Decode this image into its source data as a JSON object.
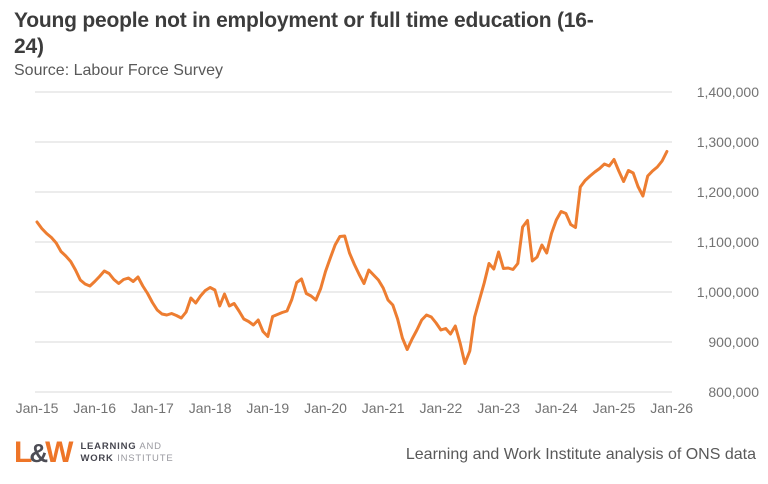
{
  "header": {
    "title_line1": "Young people not in employment or full time education (16-",
    "title_line2": "24)",
    "subtitle": "Source: Labour Force Survey"
  },
  "chart_data": {
    "type": "line",
    "title": "Young people not in employment or full time education (16-24)",
    "subtitle": "Source: Labour Force Survey",
    "xlabel": "",
    "ylabel": "",
    "ylim": [
      800000,
      1400000
    ],
    "y_gridline_step": 100000,
    "grid": true,
    "legend": false,
    "line_color": "#ed7d31",
    "gridline_color": "#d9d9d9",
    "tick_label_color": "#737373",
    "x_tick_labels": [
      "Jan-15",
      "Jan-16",
      "Jan-17",
      "Jan-18",
      "Jan-19",
      "Jan-20",
      "Jan-21",
      "Jan-22",
      "Jan-23",
      "Jan-24",
      "Jan-25",
      "Jan-26"
    ],
    "y_tick_labels": [
      "1,400,000",
      "1,300,000",
      "1,200,000",
      "1,100,000",
      "1,000,000",
      "900,000",
      "800,000"
    ],
    "x_start": "Jan-2015",
    "x_end": "Dec-2025",
    "x_frequency": "monthly",
    "series": [
      {
        "name": "Young people not in employment or full time education (16-24)",
        "color": "#ed7d31",
        "values": [
          1140000,
          1127000,
          1117000,
          1109000,
          1098000,
          1081000,
          1072000,
          1061000,
          1044000,
          1024000,
          1016000,
          1012000,
          1021000,
          1031000,
          1042000,
          1037000,
          1025000,
          1017000,
          1025000,
          1028000,
          1021000,
          1030000,
          1012000,
          997000,
          979000,
          964000,
          956000,
          954000,
          957000,
          953000,
          948000,
          960000,
          988000,
          978000,
          992000,
          1003000,
          1009000,
          1004000,
          972000,
          996000,
          972000,
          977000,
          962000,
          946000,
          941000,
          934000,
          944000,
          921000,
          911000,
          951000,
          955000,
          959000,
          962000,
          985000,
          1019000,
          1026000,
          997000,
          992000,
          984000,
          1007000,
          1041000,
          1068000,
          1094000,
          1111000,
          1112000,
          1078000,
          1055000,
          1035000,
          1017000,
          1044000,
          1034000,
          1024000,
          1008000,
          984000,
          974000,
          946000,
          908000,
          885000,
          906000,
          924000,
          944000,
          954000,
          950000,
          938000,
          924000,
          927000,
          916000,
          932000,
          898000,
          857000,
          882000,
          950000,
          984000,
          1018000,
          1057000,
          1046000,
          1080000,
          1047000,
          1048000,
          1045000,
          1057000,
          1130000,
          1143000,
          1062000,
          1070000,
          1094000,
          1078000,
          1117000,
          1144000,
          1161000,
          1157000,
          1135000,
          1129000,
          1210000,
          1223000,
          1232000,
          1240000,
          1247000,
          1256000,
          1252000,
          1265000,
          1242000,
          1221000,
          1243000,
          1238000,
          1211000,
          1192000,
          1232000,
          1242000,
          1250000,
          1262000,
          1281000
        ]
      }
    ]
  },
  "footer": {
    "logo": {
      "mark_l": "L",
      "mark_amp": "&",
      "mark_w": "W",
      "line1_bold": "LEARNING",
      "line1_rest": "AND",
      "line2_bold": "WORK",
      "line2_rest": "INSTITUTE"
    },
    "attribution": "Learning and Work Institute analysis of ONS data"
  }
}
